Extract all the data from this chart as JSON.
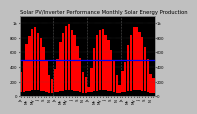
{
  "title": "Solar PV/Inverter Performance Monthly Solar Energy Production",
  "background_color": "#000000",
  "fig_bg_color": "#c0c0c0",
  "bar_color": "#ff0000",
  "dark_bar_color": "#000000",
  "blue_line_color": "#0000ff",
  "grid_color": "#555555",
  "text_color": "#000000",
  "values": [
    330,
    480,
    710,
    820,
    920,
    950,
    870,
    800,
    670,
    490,
    290,
    230,
    370,
    510,
    740,
    860,
    960,
    990,
    900,
    840,
    690,
    520,
    330,
    260,
    130,
    390,
    660,
    840,
    900,
    920,
    840,
    770,
    630,
    500,
    290,
    160,
    340,
    470,
    700,
    830,
    940,
    950,
    880,
    810,
    670,
    510,
    310,
    250
  ],
  "small_values": [
    55,
    60,
    70,
    75,
    85,
    88,
    80,
    78,
    68,
    58,
    48,
    40,
    55,
    60,
    70,
    75,
    85,
    88,
    80,
    78,
    68,
    58,
    48,
    40,
    55,
    60,
    70,
    75,
    85,
    88,
    80,
    78,
    68,
    58,
    48,
    40,
    55,
    60,
    70,
    75,
    85,
    88,
    80,
    78,
    68,
    58,
    48,
    40
  ],
  "ylim": [
    0,
    1100
  ],
  "avg_line": 500,
  "yticks": [
    0,
    200,
    400,
    600,
    800,
    1000
  ],
  "ytick_labels": [
    "0",
    "200",
    "400",
    "600",
    "800",
    "1k"
  ],
  "title_fontsize": 3.8,
  "tick_fontsize": 2.8,
  "n_bars": 48
}
